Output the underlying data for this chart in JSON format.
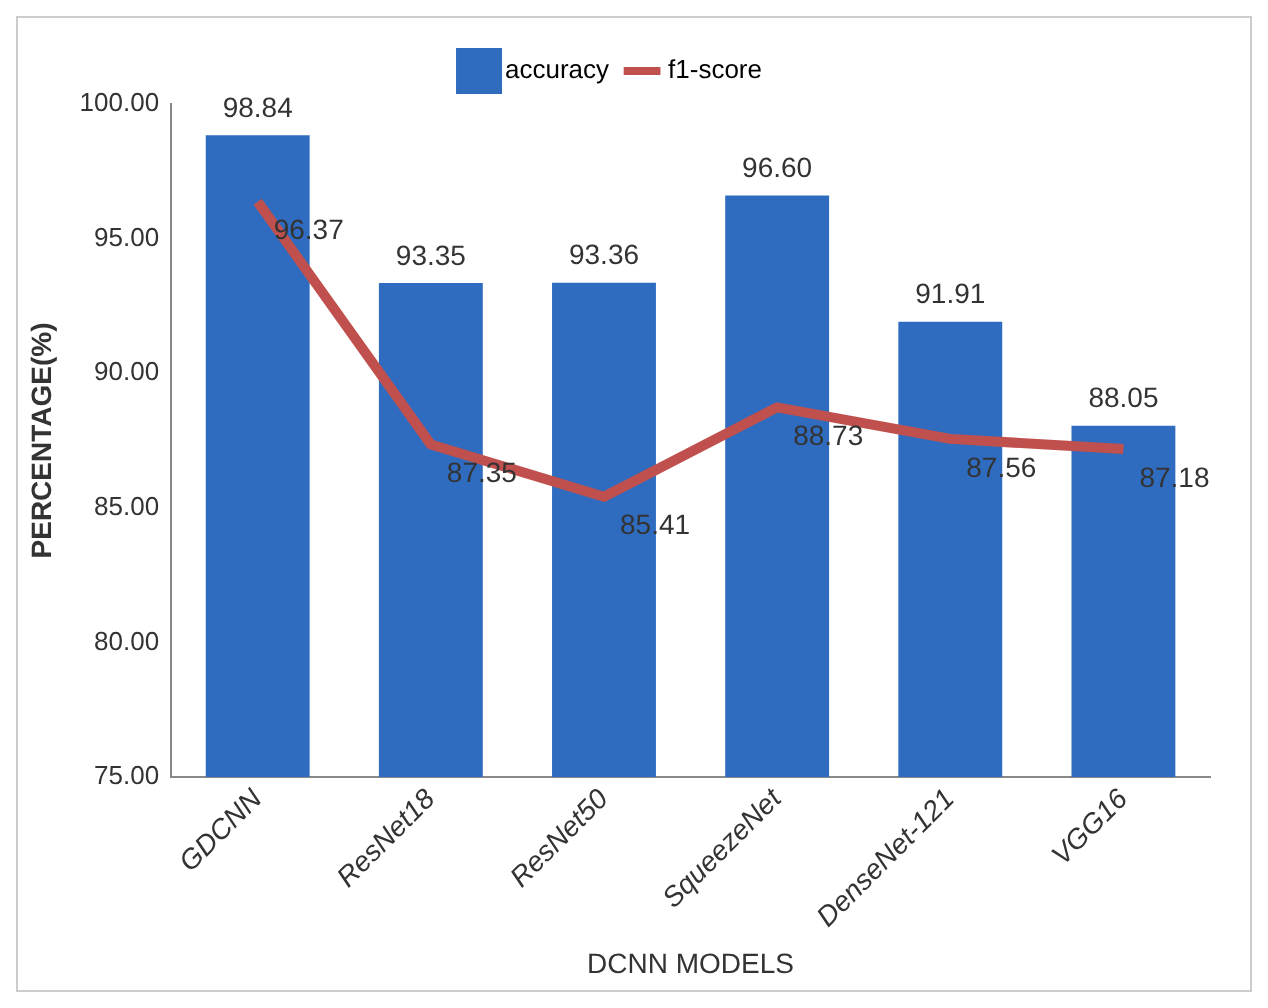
{
  "chart_data": {
    "type": "bar",
    "xlabel": "DCNN MODELS",
    "ylabel": "PERCENTAGE(%)",
    "categories": [
      "GDCNN",
      "ResNet18",
      "ResNet50",
      "SqueezeNet",
      "DenseNet-121",
      "VGG16"
    ],
    "series": [
      {
        "name": "accuracy",
        "color": "#2f6cc0",
        "values": [
          98.84,
          93.35,
          93.36,
          96.6,
          91.91,
          88.05
        ],
        "value_labels": [
          "98.84",
          "93.35",
          "93.36",
          "96.60",
          "91.91",
          "88.05"
        ]
      },
      {
        "name": "f1-score",
        "type": "line",
        "color": "#c0504d",
        "values": [
          96.37,
          87.35,
          85.41,
          88.73,
          87.56,
          87.18
        ],
        "value_labels": [
          "96.37",
          "87.35",
          "85.41",
          "88.73",
          "87.56",
          "87.18"
        ]
      }
    ],
    "ylim": [
      75,
      100
    ],
    "yticks": [
      {
        "value": 75,
        "label": "75.00"
      },
      {
        "value": 80,
        "label": "80.00"
      },
      {
        "value": 85,
        "label": "85.00"
      },
      {
        "value": 90,
        "label": "90.00"
      },
      {
        "value": 95,
        "label": "95.00"
      },
      {
        "value": 100,
        "label": "100.00"
      }
    ],
    "grid": false,
    "legend": "top",
    "marker": "none",
    "line_style": "solid"
  }
}
